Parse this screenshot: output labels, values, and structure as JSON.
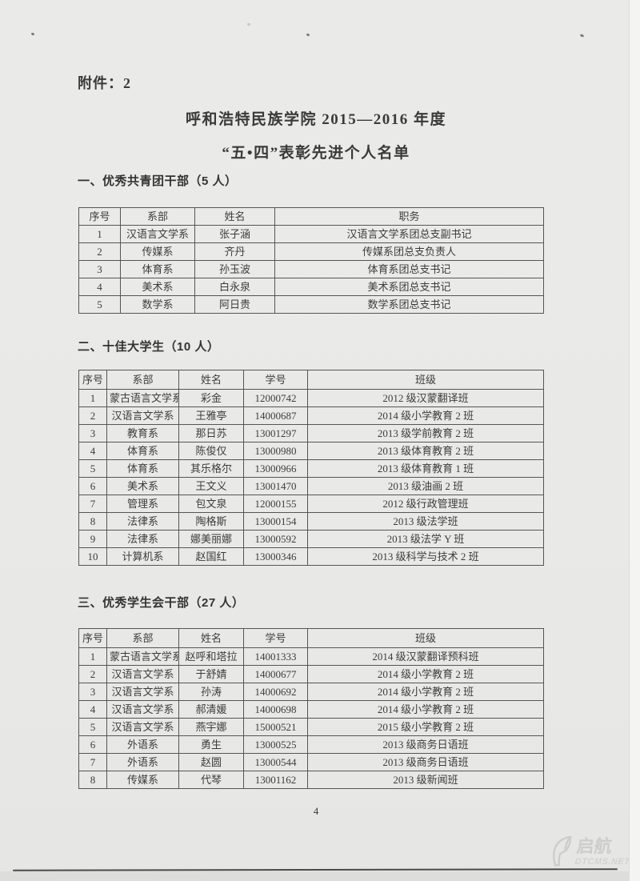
{
  "page": {
    "attachment_label": "附件：2",
    "title_line1": "呼和浩特民族学院 2015—2016 年度",
    "title_line2": "“五•四”表彰先进个人名单",
    "page_number": "4"
  },
  "watermark": {
    "logo_icon": "sail-ribbon-logo-icon",
    "brand": "启航",
    "domain": "DTCMS.NET"
  },
  "colors": {
    "paper": "#e9e9e7",
    "text": "#3a3a3a",
    "table_border": "#555553",
    "watermark": "#cfcfcc"
  },
  "sections": [
    {
      "heading": "一、优秀共青团干部（5 人）",
      "headers": [
        "序号",
        "系部",
        "姓名",
        "职务"
      ],
      "rows": [
        [
          "1",
          "汉语言文学系",
          "张子涵",
          "汉语言文学系团总支副书记"
        ],
        [
          "2",
          "传媒系",
          "齐丹",
          "传媒系团总支负责人"
        ],
        [
          "3",
          "体育系",
          "孙玉波",
          "体育系团总支书记"
        ],
        [
          "4",
          "美术系",
          "白永泉",
          "美术系团总支书记"
        ],
        [
          "5",
          "数学系",
          "阿日贵",
          "数学系团总支书记"
        ]
      ]
    },
    {
      "heading": "二、十佳大学生（10 人）",
      "headers": [
        "序号",
        "系部",
        "姓名",
        "学号",
        "班级"
      ],
      "rows": [
        [
          "1",
          "蒙古语言文学系",
          "彩金",
          "12000742",
          "2012 级汉蒙翻译班"
        ],
        [
          "2",
          "汉语言文学系",
          "王雅亭",
          "14000687",
          "2014 级小学教育 2 班"
        ],
        [
          "3",
          "教育系",
          "那日苏",
          "13001297",
          "2013 级学前教育 2 班"
        ],
        [
          "4",
          "体育系",
          "陈俊仅",
          "13000980",
          "2013 级体育教育 2 班"
        ],
        [
          "5",
          "体育系",
          "其乐格尔",
          "13000966",
          "2013 级体育教育 1 班"
        ],
        [
          "6",
          "美术系",
          "王文义",
          "13001470",
          "2013 级油画 2 班"
        ],
        [
          "7",
          "管理系",
          "包文泉",
          "12000155",
          "2012 级行政管理班"
        ],
        [
          "8",
          "法律系",
          "陶格斯",
          "13000154",
          "2013 级法学班"
        ],
        [
          "9",
          "法律系",
          "娜美丽娜",
          "13000592",
          "2013 级法学 Y 班"
        ],
        [
          "10",
          "计算机系",
          "赵国红",
          "13000346",
          "2013 级科学与技术 2 班"
        ]
      ]
    },
    {
      "heading": "三、优秀学生会干部（27 人）",
      "headers": [
        "序号",
        "系部",
        "姓名",
        "学号",
        "班级"
      ],
      "rows": [
        [
          "1",
          "蒙古语言文学系",
          "赵呼和塔拉",
          "14001333",
          "2014 级汉蒙翻译预科班"
        ],
        [
          "2",
          "汉语言文学系",
          "于舒婧",
          "14000677",
          "2014 级小学教育 2 班"
        ],
        [
          "3",
          "汉语言文学系",
          "孙涛",
          "14000692",
          "2014 级小学教育 2 班"
        ],
        [
          "4",
          "汉语言文学系",
          "郝清媛",
          "14000698",
          "2014 级小学教育 2 班"
        ],
        [
          "5",
          "汉语言文学系",
          "燕宇娜",
          "15000521",
          "2015 级小学教育 2 班"
        ],
        [
          "6",
          "外语系",
          "勇生",
          "13000525",
          "2013 级商务日语班"
        ],
        [
          "7",
          "外语系",
          "赵圆",
          "13000544",
          "2013 级商务日语班"
        ],
        [
          "8",
          "传媒系",
          "代琴",
          "13001162",
          "2013 级新闻班"
        ]
      ]
    }
  ]
}
